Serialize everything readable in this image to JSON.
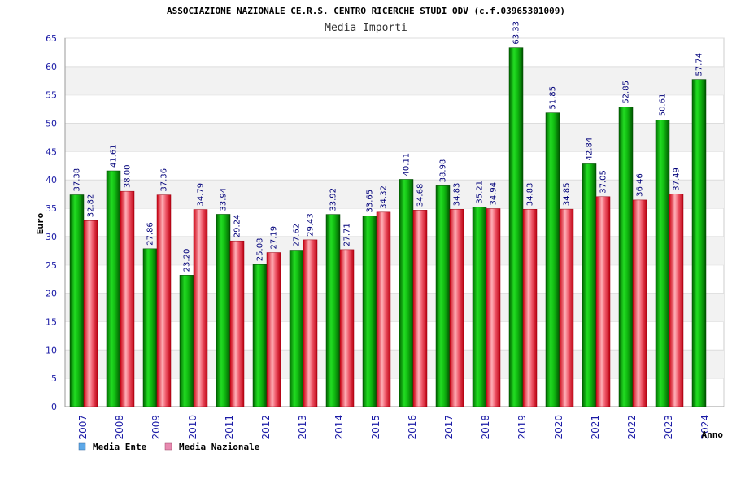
{
  "chart_data": {
    "type": "bar",
    "title": "ASSOCIAZIONE NAZIONALE CE.R.S. CENTRO RICERCHE STUDI ODV (c.f.03965301009)",
    "subtitle": "Media Importi",
    "xlabel": "Anno",
    "ylabel": "Euro",
    "ylim": [
      0,
      65
    ],
    "yticks": [
      0,
      5,
      10,
      15,
      20,
      25,
      30,
      35,
      40,
      45,
      50,
      55,
      60,
      65
    ],
    "grid": "horizontal bands",
    "legend_position": "bottom-left",
    "categories": [
      "2007",
      "2008",
      "2009",
      "2010",
      "2011",
      "2012",
      "2013",
      "2014",
      "2015",
      "2016",
      "2017",
      "2018",
      "2019",
      "2020",
      "2021",
      "2022",
      "2023",
      "2024"
    ],
    "series": [
      {
        "name": "Media Ente",
        "color": "#1fbf1f",
        "values": [
          37.38,
          41.61,
          27.86,
          23.2,
          33.94,
          25.08,
          27.62,
          33.92,
          33.65,
          40.11,
          38.98,
          35.21,
          63.33,
          51.85,
          42.84,
          52.85,
          50.61,
          57.74
        ],
        "labels": [
          "37.38",
          "41.61",
          "27.86",
          "23.20",
          "33.94",
          "25.08",
          "27.62",
          "33.92",
          "33.65",
          "40.11",
          "38.98",
          "35.21",
          "63.33",
          "51.85",
          "42.84",
          "52.85",
          "50.61",
          "57.74"
        ]
      },
      {
        "name": "Media Nazionale",
        "color": "#e84a5f",
        "values": [
          32.82,
          38.0,
          37.36,
          34.79,
          29.24,
          27.19,
          29.43,
          27.71,
          34.32,
          34.68,
          34.83,
          34.94,
          34.83,
          34.85,
          37.05,
          36.46,
          37.49,
          null
        ],
        "labels": [
          "32.82",
          "38.00",
          "37.36",
          "34.79",
          "29.24",
          "27.19",
          "29.43",
          "27.71",
          "34.32",
          "34.68",
          "34.83",
          "34.94",
          "34.83",
          "34.85",
          "37.05",
          "36.46",
          "37.49",
          ""
        ]
      }
    ]
  }
}
